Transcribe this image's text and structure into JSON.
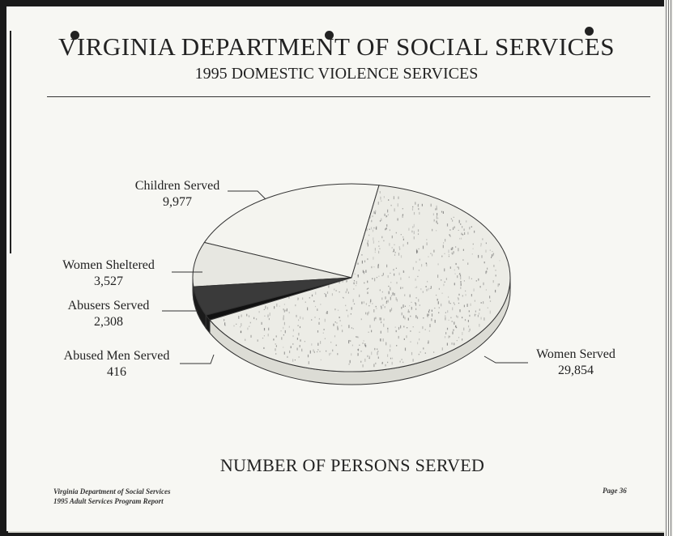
{
  "header": {
    "title": "VIRGINIA DEPARTMENT OF SOCIAL SERVICES",
    "subtitle": "1995 DOMESTIC VIOLENCE SERVICES"
  },
  "caption": "NUMBER OF PERSONS SERVED",
  "footer": {
    "line1": "Virginia Department of Social Services",
    "line2": "1995 Adult Services Program Report",
    "page": "Page 36"
  },
  "chart_data": {
    "type": "pie",
    "title": "NUMBER OF PERSONS SERVED",
    "style": "3d-oblique",
    "slices": [
      {
        "label": "Children Served",
        "value": 9977,
        "value_label": "9,977",
        "color": "#f4f4ef"
      },
      {
        "label": "Women Sheltered",
        "value": 3527,
        "value_label": "3,527",
        "color": "#e7e7e1"
      },
      {
        "label": "Abusers Served",
        "value": 2308,
        "value_label": "2,308",
        "color": "#3a3a3a"
      },
      {
        "label": "Abused Men Served",
        "value": 416,
        "value_label": "416",
        "color": "#111111"
      },
      {
        "label": "Women Served",
        "value": 29854,
        "value_label": "29,854",
        "color": "#ecece6"
      }
    ]
  }
}
